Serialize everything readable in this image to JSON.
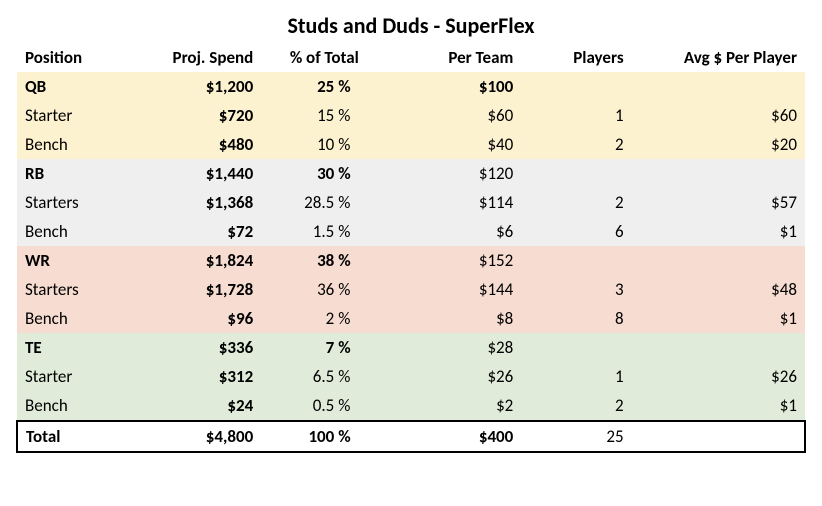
{
  "title": "Studs and Duds - SuperFlex",
  "headers": {
    "position": "Position",
    "proj_spend": "Proj. Spend",
    "pct_total": "% of Total",
    "per_team": "Per Team",
    "players": "Players",
    "avg_per_player": "Avg $ Per Player"
  },
  "colors": {
    "qb": "#fdf2d0",
    "rb": "#efefef",
    "wr": "#f6dcd1",
    "te": "#e0ecd9",
    "total_border": "#000000"
  },
  "rows": [
    {
      "group": "qb",
      "position": "QB",
      "spend": "$1,200",
      "pct": "25",
      "per_team": "$100",
      "players": "",
      "avg": "",
      "bold_pos": true,
      "bold_pct": true,
      "bold_pt": true
    },
    {
      "group": "qb",
      "position": "Starter",
      "spend": "$720",
      "pct": "15",
      "per_team": "$60",
      "players": "1",
      "avg": "$60",
      "bold_pos": false,
      "bold_pct": false,
      "bold_pt": false
    },
    {
      "group": "qb",
      "position": "Bench",
      "spend": "$480",
      "pct": "10",
      "per_team": "$40",
      "players": "2",
      "avg": "$20",
      "bold_pos": false,
      "bold_pct": false,
      "bold_pt": false
    },
    {
      "group": "rb",
      "position": "RB",
      "spend": "$1,440",
      "pct": "30",
      "per_team": "$120",
      "players": "",
      "avg": "",
      "bold_pos": true,
      "bold_pct": true,
      "bold_pt": false
    },
    {
      "group": "rb",
      "position": "Starters",
      "spend": "$1,368",
      "pct": "28.5",
      "per_team": "$114",
      "players": "2",
      "avg": "$57",
      "bold_pos": false,
      "bold_pct": false,
      "bold_pt": false
    },
    {
      "group": "rb",
      "position": "Bench",
      "spend": "$72",
      "pct": "1.5",
      "per_team": "$6",
      "players": "6",
      "avg": "$1",
      "bold_pos": false,
      "bold_pct": false,
      "bold_pt": false
    },
    {
      "group": "wr",
      "position": "WR",
      "spend": "$1,824",
      "pct": "38",
      "per_team": "$152",
      "players": "",
      "avg": "",
      "bold_pos": true,
      "bold_pct": true,
      "bold_pt": false
    },
    {
      "group": "wr",
      "position": "Starters",
      "spend": "$1,728",
      "pct": "36",
      "per_team": "$144",
      "players": "3",
      "avg": "$48",
      "bold_pos": false,
      "bold_pct": false,
      "bold_pt": false
    },
    {
      "group": "wr",
      "position": "Bench",
      "spend": "$96",
      "pct": "2",
      "per_team": "$8",
      "players": "8",
      "avg": "$1",
      "bold_pos": false,
      "bold_pct": false,
      "bold_pt": false
    },
    {
      "group": "te",
      "position": "TE",
      "spend": "$336",
      "pct": "7",
      "per_team": "$28",
      "players": "",
      "avg": "",
      "bold_pos": true,
      "bold_pct": true,
      "bold_pt": false
    },
    {
      "group": "te",
      "position": "Starter",
      "spend": "$312",
      "pct": "6.5",
      "per_team": "$26",
      "players": "1",
      "avg": "$26",
      "bold_pos": false,
      "bold_pct": false,
      "bold_pt": false
    },
    {
      "group": "te",
      "position": "Bench",
      "spend": "$24",
      "pct": "0.5",
      "per_team": "$2",
      "players": "2",
      "avg": "$1",
      "bold_pos": false,
      "bold_pct": false,
      "bold_pt": false
    }
  ],
  "total": {
    "position": "Total",
    "spend": "$4,800",
    "pct": "100",
    "per_team": "$400",
    "players": "25",
    "avg": ""
  }
}
